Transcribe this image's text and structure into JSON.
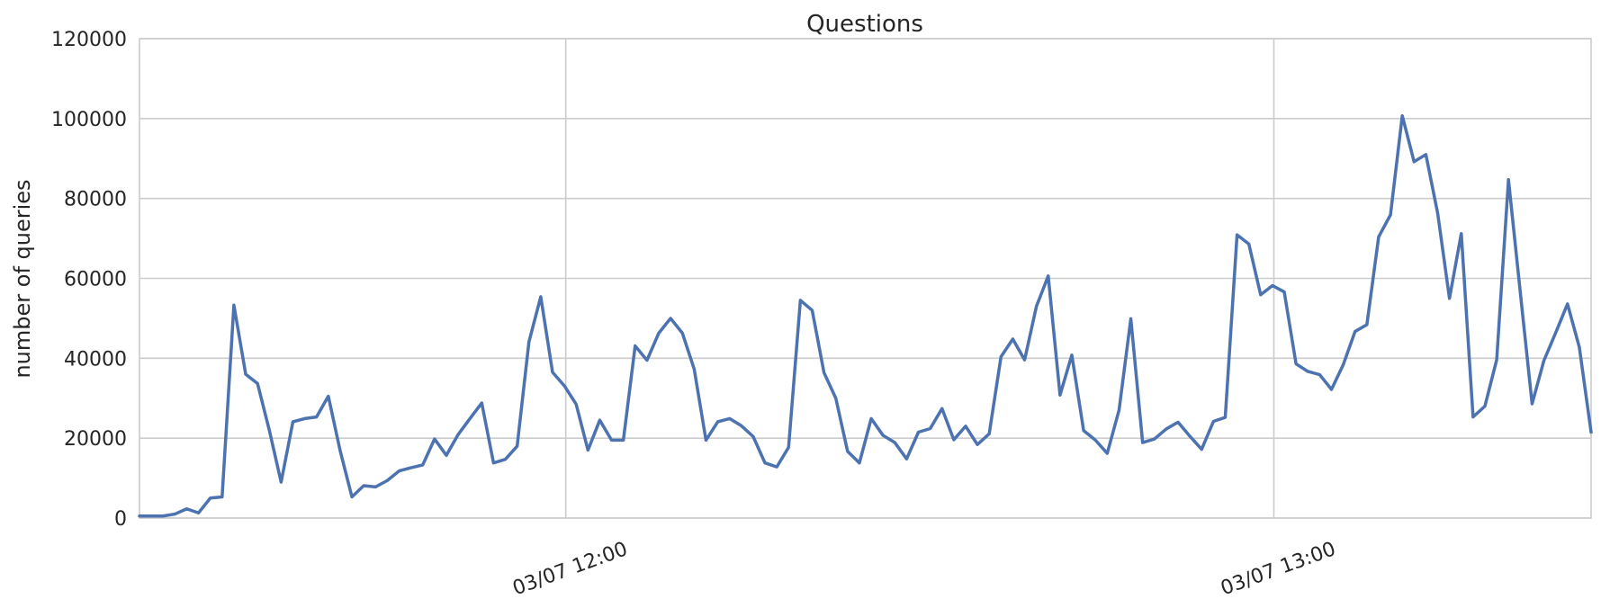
{
  "chart_data": {
    "type": "line",
    "title": "Questions",
    "xlabel": "",
    "ylabel": "number of queries",
    "ylim": [
      0,
      120000
    ],
    "y_ticks": [
      0,
      20000,
      40000,
      60000,
      80000,
      100000,
      120000
    ],
    "x_tick_labels": [
      "03/07 12:00",
      "03/07 13:00"
    ],
    "grid": true,
    "line_color": "#4c72b0",
    "series": [
      {
        "values": [
          500,
          500,
          500,
          1000,
          2300,
          1300,
          5000,
          5300,
          53300,
          36000,
          33700,
          22000,
          9000,
          24100,
          24900,
          25300,
          30500,
          16900,
          5300,
          8100,
          7800,
          9400,
          11800,
          12600,
          13300,
          19800,
          15700,
          20900,
          24900,
          28800,
          13800,
          14700,
          18000,
          44100,
          55400,
          36500,
          33100,
          28500,
          17000,
          24500,
          19500,
          19500,
          43100,
          39500,
          46300,
          50000,
          46300,
          37300,
          19500,
          24100,
          24900,
          23100,
          20400,
          13800,
          12800,
          17700,
          54500,
          52000,
          36400,
          30000,
          16700,
          13800,
          24900,
          20700,
          18900,
          14800,
          21500,
          22400,
          27400,
          19600,
          23000,
          18400,
          21100,
          40400,
          44800,
          39600,
          53000,
          60600,
          30800,
          40800,
          21900,
          19500,
          16200,
          27000,
          49900,
          18900,
          19800,
          22300,
          24000,
          20500,
          17200,
          24200,
          25200,
          70900,
          68600,
          55900,
          58200,
          56600,
          38600,
          36700,
          35900,
          32200,
          38400,
          46700,
          48400,
          70400,
          75900,
          100700,
          89200,
          91000,
          76300,
          55000,
          71200,
          25300,
          28000,
          39600,
          84700,
          56500,
          28600,
          39400,
          46400,
          53600,
          42800,
          21500
        ]
      }
    ]
  }
}
